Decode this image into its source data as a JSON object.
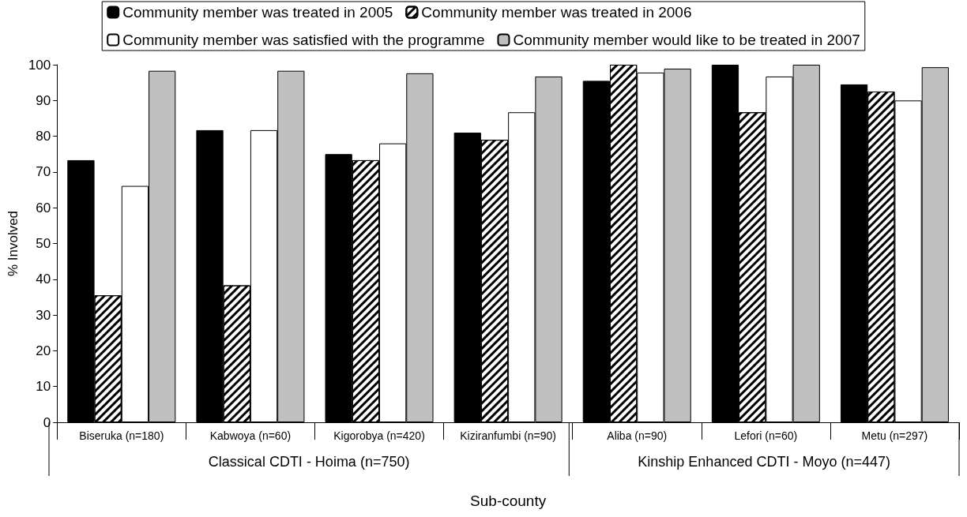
{
  "chart_data": {
    "type": "bar",
    "xlabel": "Sub-county",
    "ylabel": "% Involved",
    "categories": [
      "Biseruka (n=180)",
      "Kabwoya (n=60)",
      "Kigorobya (n=420)",
      "Kiziranfumbi (n=90)",
      "Aliba (n=90)",
      "Lefori (n=60)",
      "Metu (n=297)"
    ],
    "series": [
      {
        "name": "Community member was treated in 2005",
        "color": "#000000",
        "values": [
          73.3,
          81.7,
          75,
          81,
          95.5,
          100,
          94.5
        ]
      },
      {
        "name": "Community member was treated in 2006",
        "color": "#ffffff",
        "values": [
          35.5,
          38.3,
          73.3,
          79,
          100,
          86.7,
          92.5
        ]
      },
      {
        "name": "Community member was satisfied with the programme",
        "color": "#ffffff",
        "values": [
          66.1,
          81.7,
          78,
          86.7,
          97.8,
          96.7,
          90
        ]
      },
      {
        "name": "Community member would like to be treated in 2007",
        "color": "#c0c0c0",
        "values": [
          98.3,
          98.3,
          97.6,
          96.7,
          98.9,
          100,
          99.3
        ]
      }
    ],
    "annotations": [
      "Classical CDTI - Hoima (n=750)",
      "Kinship Enhanced CDTI - Moyo (n=447)"
    ],
    "ylim": [
      0,
      100
    ],
    "yticks": [
      0,
      10,
      20,
      30,
      40,
      50,
      60,
      70,
      80,
      90,
      100
    ],
    "grid": false,
    "legend": "top"
  }
}
